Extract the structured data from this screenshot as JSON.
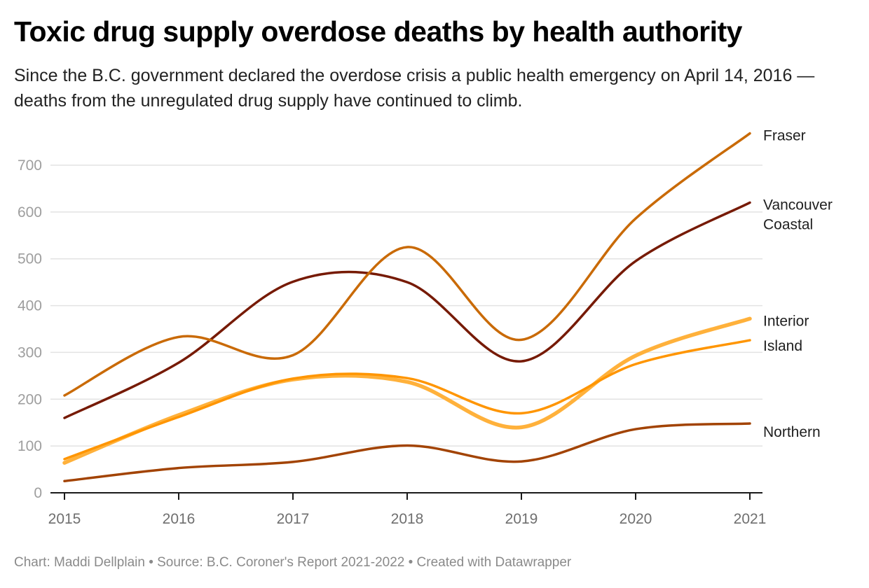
{
  "title": "Toxic drug supply overdose deaths by health authority",
  "subtitle": "Since the B.C. government declared the overdose crisis a public health emergency on April 14, 2016 — deaths from the unregulated drug supply have continued to climb.",
  "footer": "Chart: Maddi Dellplain • Source: B.C. Coroner's Report 2021-2022 • Created with Datawrapper",
  "chart_data": {
    "type": "line",
    "title": "Toxic drug supply overdose deaths by health authority",
    "xlabel": "",
    "ylabel": "",
    "x": [
      "2015",
      "2016",
      "2017",
      "2018",
      "2019",
      "2020",
      "2021"
    ],
    "ylim": [
      0,
      700
    ],
    "yticks": [
      0,
      100,
      200,
      300,
      400,
      500,
      600,
      700
    ],
    "grid": true,
    "legend": "direct-labels-right",
    "series": [
      {
        "name": "Fraser",
        "label_lines": [
          "Fraser"
        ],
        "color": "#c96a06",
        "values": [
          208,
          333,
          294,
          525,
          327,
          586,
          768
        ]
      },
      {
        "name": "Vancouver Coastal",
        "label_lines": [
          "Vancouver",
          "Coastal"
        ],
        "color": "#761a04",
        "values": [
          160,
          278,
          451,
          450,
          281,
          495,
          620
        ]
      },
      {
        "name": "Interior",
        "label_lines": [
          "Interior"
        ],
        "color": "#ffb13b",
        "values": [
          64,
          166,
          242,
          237,
          140,
          293,
          372
        ]
      },
      {
        "name": "Island",
        "label_lines": [
          "Island"
        ],
        "color": "#ff9500",
        "values": [
          72,
          162,
          244,
          245,
          170,
          275,
          326
        ]
      },
      {
        "name": "Northern",
        "label_lines": [
          "Northern"
        ],
        "color": "#a24303",
        "values": [
          25,
          53,
          66,
          101,
          67,
          136,
          148
        ]
      }
    ]
  }
}
